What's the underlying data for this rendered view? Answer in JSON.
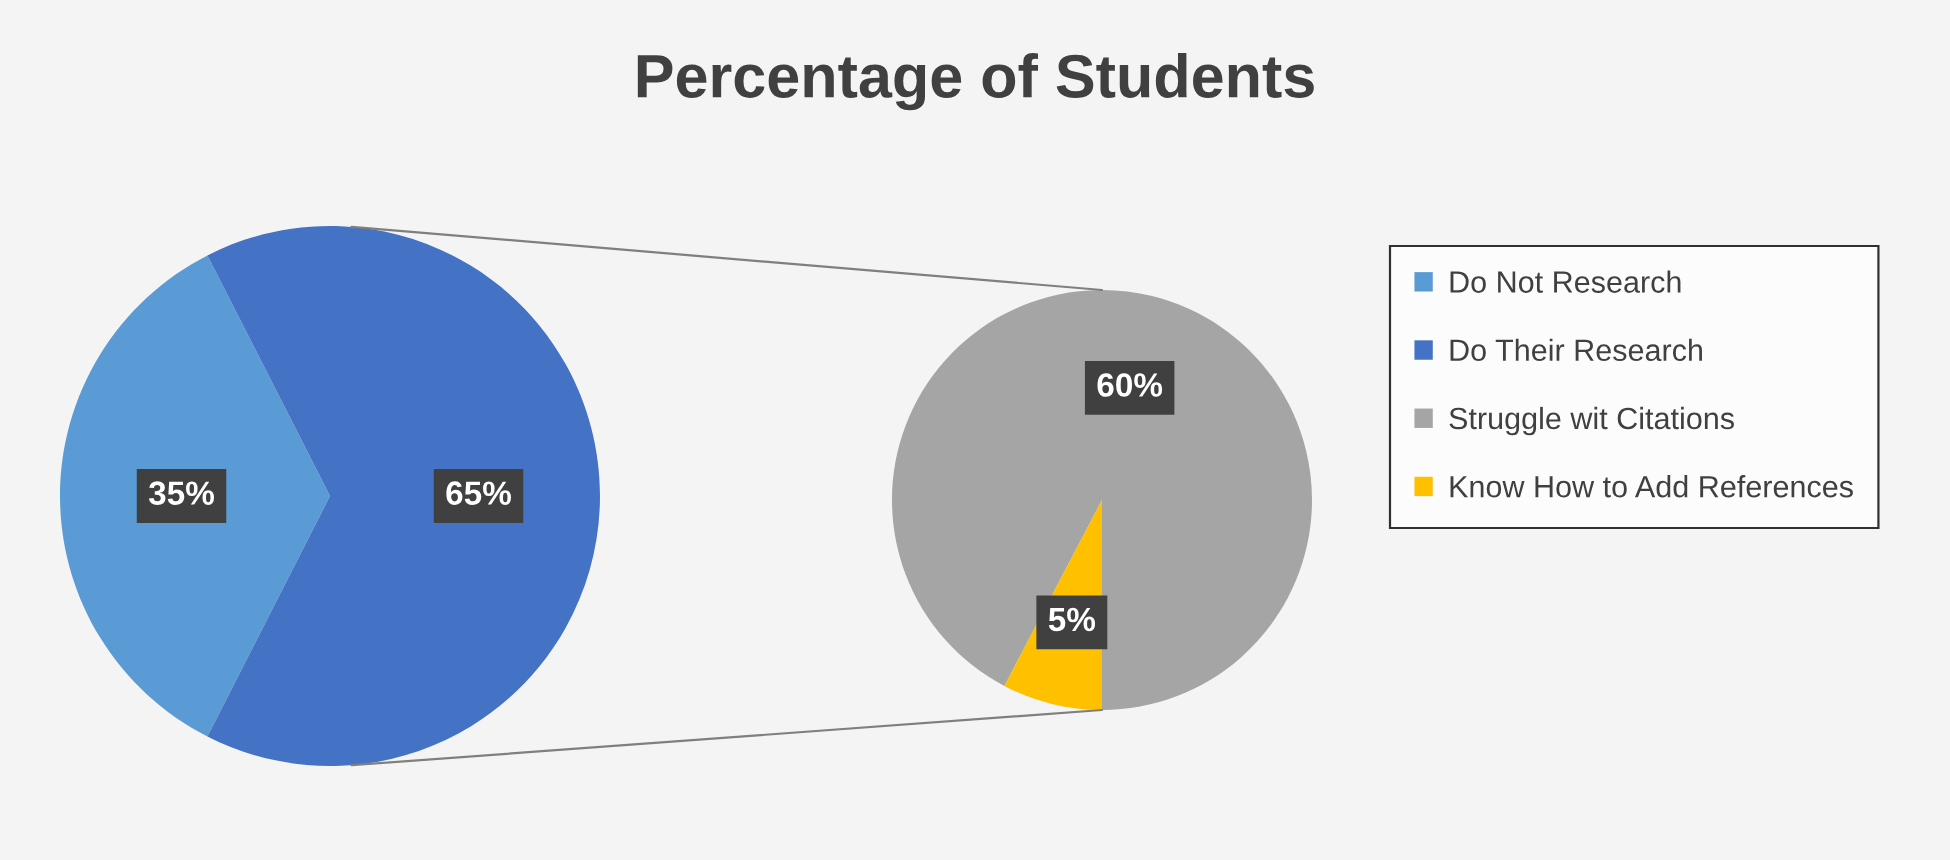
{
  "chart_data": [
    {
      "type": "pie",
      "title": "Percentage of Students",
      "categories": [
        "Do Not Research",
        "Do Their Research"
      ],
      "values": [
        35,
        65
      ],
      "colors": [
        "#5b9bd5",
        "#4472c4"
      ],
      "value_labels": [
        "35%",
        "65%"
      ],
      "legend": "right"
    },
    {
      "type": "pie",
      "categories": [
        "Struggle wit Citations",
        "Know How to Add References"
      ],
      "values": [
        60,
        5
      ],
      "colors": [
        "#a5a5a5",
        "#ffc000"
      ],
      "value_labels": [
        "60%",
        "5%"
      ],
      "legend": "right"
    }
  ]
}
